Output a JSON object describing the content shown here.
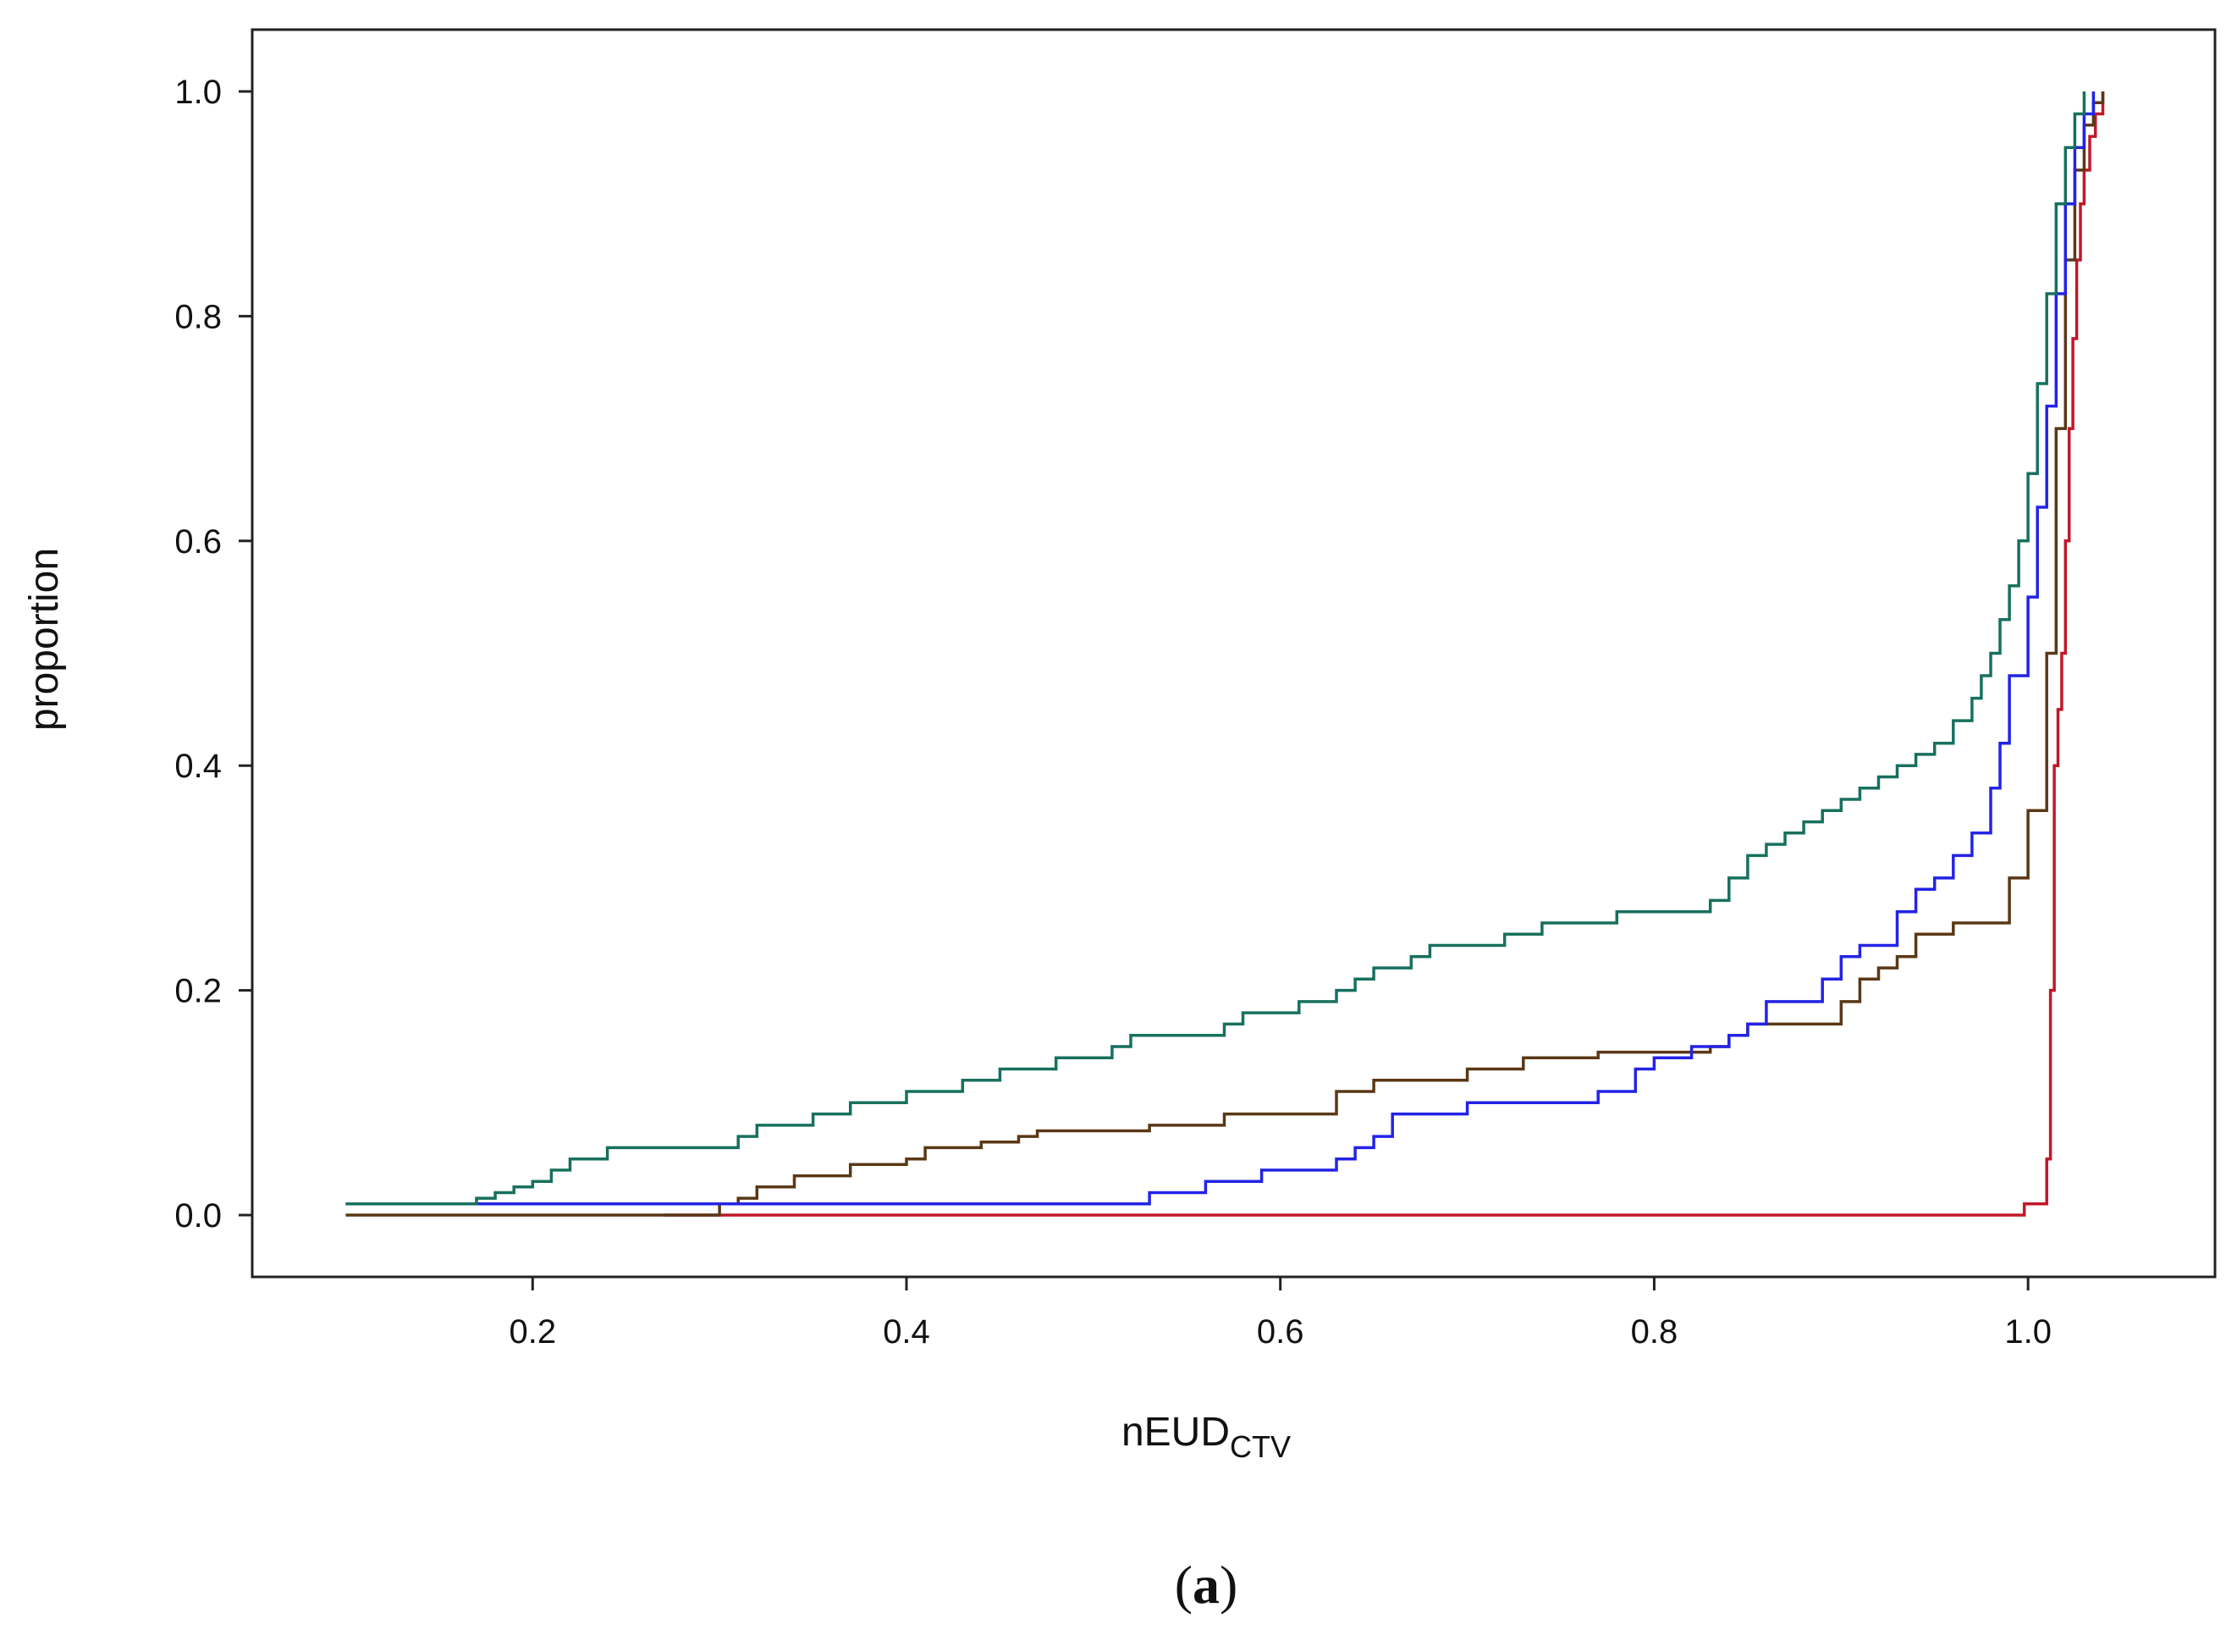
{
  "chart_data": {
    "type": "line",
    "step": true,
    "title": "",
    "xlabel": "nEUD",
    "xlabel_subscript": "CTV",
    "ylabel": "proportion",
    "caption_open": "(",
    "caption_letter": "a",
    "caption_close": ")",
    "xlim": [
      0.05,
      1.1
    ],
    "ylim": [
      -0.055,
      1.055
    ],
    "xticks": [
      0.2,
      0.4,
      0.6,
      0.8,
      1.0
    ],
    "xtick_labels": [
      "0.2",
      "0.4",
      "0.6",
      "0.8",
      "1.0"
    ],
    "yticks": [
      0.0,
      0.2,
      0.4,
      0.6,
      0.8,
      1.0
    ],
    "ytick_labels": [
      "0.0",
      "0.2",
      "0.4",
      "0.6",
      "0.8",
      "1.0"
    ],
    "grid": false,
    "series": [
      {
        "name": "red",
        "color": "#c0182a",
        "x": [
          0.27,
          0.995,
          0.998,
          1.008,
          1.01,
          1.012,
          1.014,
          1.016,
          1.018,
          1.02,
          1.022,
          1.024,
          1.026,
          1.028,
          1.03,
          1.033,
          1.036,
          1.04
        ],
        "y": [
          0.0,
          0.0,
          0.01,
          0.01,
          0.05,
          0.2,
          0.4,
          0.45,
          0.5,
          0.6,
          0.7,
          0.78,
          0.85,
          0.9,
          0.93,
          0.96,
          0.98,
          1.0
        ]
      },
      {
        "name": "brown",
        "color": "#5a3816",
        "x": [
          0.1,
          0.29,
          0.3,
          0.31,
          0.32,
          0.34,
          0.37,
          0.4,
          0.41,
          0.44,
          0.46,
          0.47,
          0.53,
          0.57,
          0.63,
          0.65,
          0.7,
          0.73,
          0.77,
          0.83,
          0.84,
          0.85,
          0.9,
          0.91,
          0.92,
          0.93,
          0.94,
          0.96,
          0.99,
          1.0,
          1.01,
          1.015,
          1.02,
          1.025,
          1.03,
          1.035,
          1.04
        ],
        "y": [
          0.0,
          0.0,
          0.01,
          0.015,
          0.025,
          0.035,
          0.045,
          0.05,
          0.06,
          0.065,
          0.07,
          0.075,
          0.08,
          0.09,
          0.11,
          0.12,
          0.13,
          0.14,
          0.145,
          0.15,
          0.16,
          0.17,
          0.19,
          0.21,
          0.22,
          0.23,
          0.25,
          0.26,
          0.3,
          0.36,
          0.5,
          0.7,
          0.85,
          0.93,
          0.97,
          0.99,
          1.0
        ]
      },
      {
        "name": "blue",
        "color": "#2323e6",
        "x": [
          0.1,
          0.52,
          0.53,
          0.56,
          0.59,
          0.63,
          0.64,
          0.65,
          0.66,
          0.7,
          0.77,
          0.79,
          0.8,
          0.82,
          0.84,
          0.85,
          0.86,
          0.89,
          0.9,
          0.91,
          0.93,
          0.94,
          0.95,
          0.96,
          0.97,
          0.98,
          0.985,
          0.99,
          1.0,
          1.005,
          1.01,
          1.015,
          1.02,
          1.025,
          1.03,
          1.035
        ],
        "y": [
          0.01,
          0.01,
          0.02,
          0.03,
          0.04,
          0.05,
          0.06,
          0.07,
          0.09,
          0.1,
          0.11,
          0.13,
          0.14,
          0.15,
          0.16,
          0.17,
          0.19,
          0.21,
          0.23,
          0.24,
          0.27,
          0.29,
          0.3,
          0.32,
          0.34,
          0.38,
          0.42,
          0.48,
          0.55,
          0.63,
          0.72,
          0.82,
          0.9,
          0.95,
          0.98,
          1.0
        ]
      },
      {
        "name": "teal",
        "color": "#17705e",
        "x": [
          0.1,
          0.16,
          0.17,
          0.18,
          0.19,
          0.2,
          0.21,
          0.22,
          0.24,
          0.31,
          0.32,
          0.35,
          0.37,
          0.4,
          0.43,
          0.45,
          0.48,
          0.51,
          0.52,
          0.57,
          0.58,
          0.61,
          0.63,
          0.64,
          0.65,
          0.67,
          0.68,
          0.72,
          0.74,
          0.78,
          0.83,
          0.84,
          0.85,
          0.86,
          0.87,
          0.88,
          0.89,
          0.9,
          0.91,
          0.92,
          0.93,
          0.94,
          0.95,
          0.96,
          0.97,
          0.975,
          0.98,
          0.985,
          0.99,
          0.995,
          1.0,
          1.005,
          1.01,
          1.015,
          1.02,
          1.025,
          1.03
        ],
        "y": [
          0.01,
          0.01,
          0.015,
          0.02,
          0.025,
          0.03,
          0.04,
          0.05,
          0.06,
          0.07,
          0.08,
          0.09,
          0.1,
          0.11,
          0.12,
          0.13,
          0.14,
          0.15,
          0.16,
          0.17,
          0.18,
          0.19,
          0.2,
          0.21,
          0.22,
          0.23,
          0.24,
          0.25,
          0.26,
          0.27,
          0.28,
          0.3,
          0.32,
          0.33,
          0.34,
          0.35,
          0.36,
          0.37,
          0.38,
          0.39,
          0.4,
          0.41,
          0.42,
          0.44,
          0.46,
          0.48,
          0.5,
          0.53,
          0.56,
          0.6,
          0.66,
          0.74,
          0.82,
          0.9,
          0.95,
          0.98,
          1.0
        ]
      }
    ]
  }
}
